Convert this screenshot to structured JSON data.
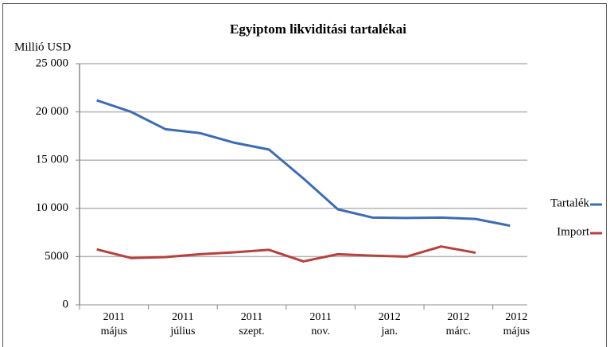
{
  "chart_data": {
    "type": "line",
    "title": "Egyiptom likviditási tartalékai",
    "y_label": "Millió USD",
    "categories": [
      "2011 május",
      null,
      "2011 július",
      null,
      "2011 szept.",
      null,
      "2011 nov.",
      null,
      "2012 jan.",
      null,
      "2012 márc.",
      null,
      "2012 május"
    ],
    "series": [
      {
        "name": "Tartalék",
        "color": "#3b6cb4",
        "values": [
          21200,
          20000,
          18200,
          17800,
          16800,
          16100,
          13100,
          9900,
          9050,
          9000,
          9050,
          8900,
          8200
        ]
      },
      {
        "name": "Import",
        "color": "#b8403e",
        "values": [
          5750,
          4850,
          4950,
          5250,
          5450,
          5700,
          4500,
          5250,
          5100,
          5000,
          6050,
          5400,
          null
        ]
      }
    ],
    "ylim": [
      0,
      25000
    ],
    "yticks": [
      0,
      5000,
      {
        "value": 10000,
        "label": "10 000"
      },
      {
        "value": 15000,
        "label": "15 000"
      },
      {
        "value": 20000,
        "label": "20 000"
      },
      {
        "value": 25000,
        "label": "25 000"
      }
    ],
    "grid": true,
    "legend": "right"
  }
}
